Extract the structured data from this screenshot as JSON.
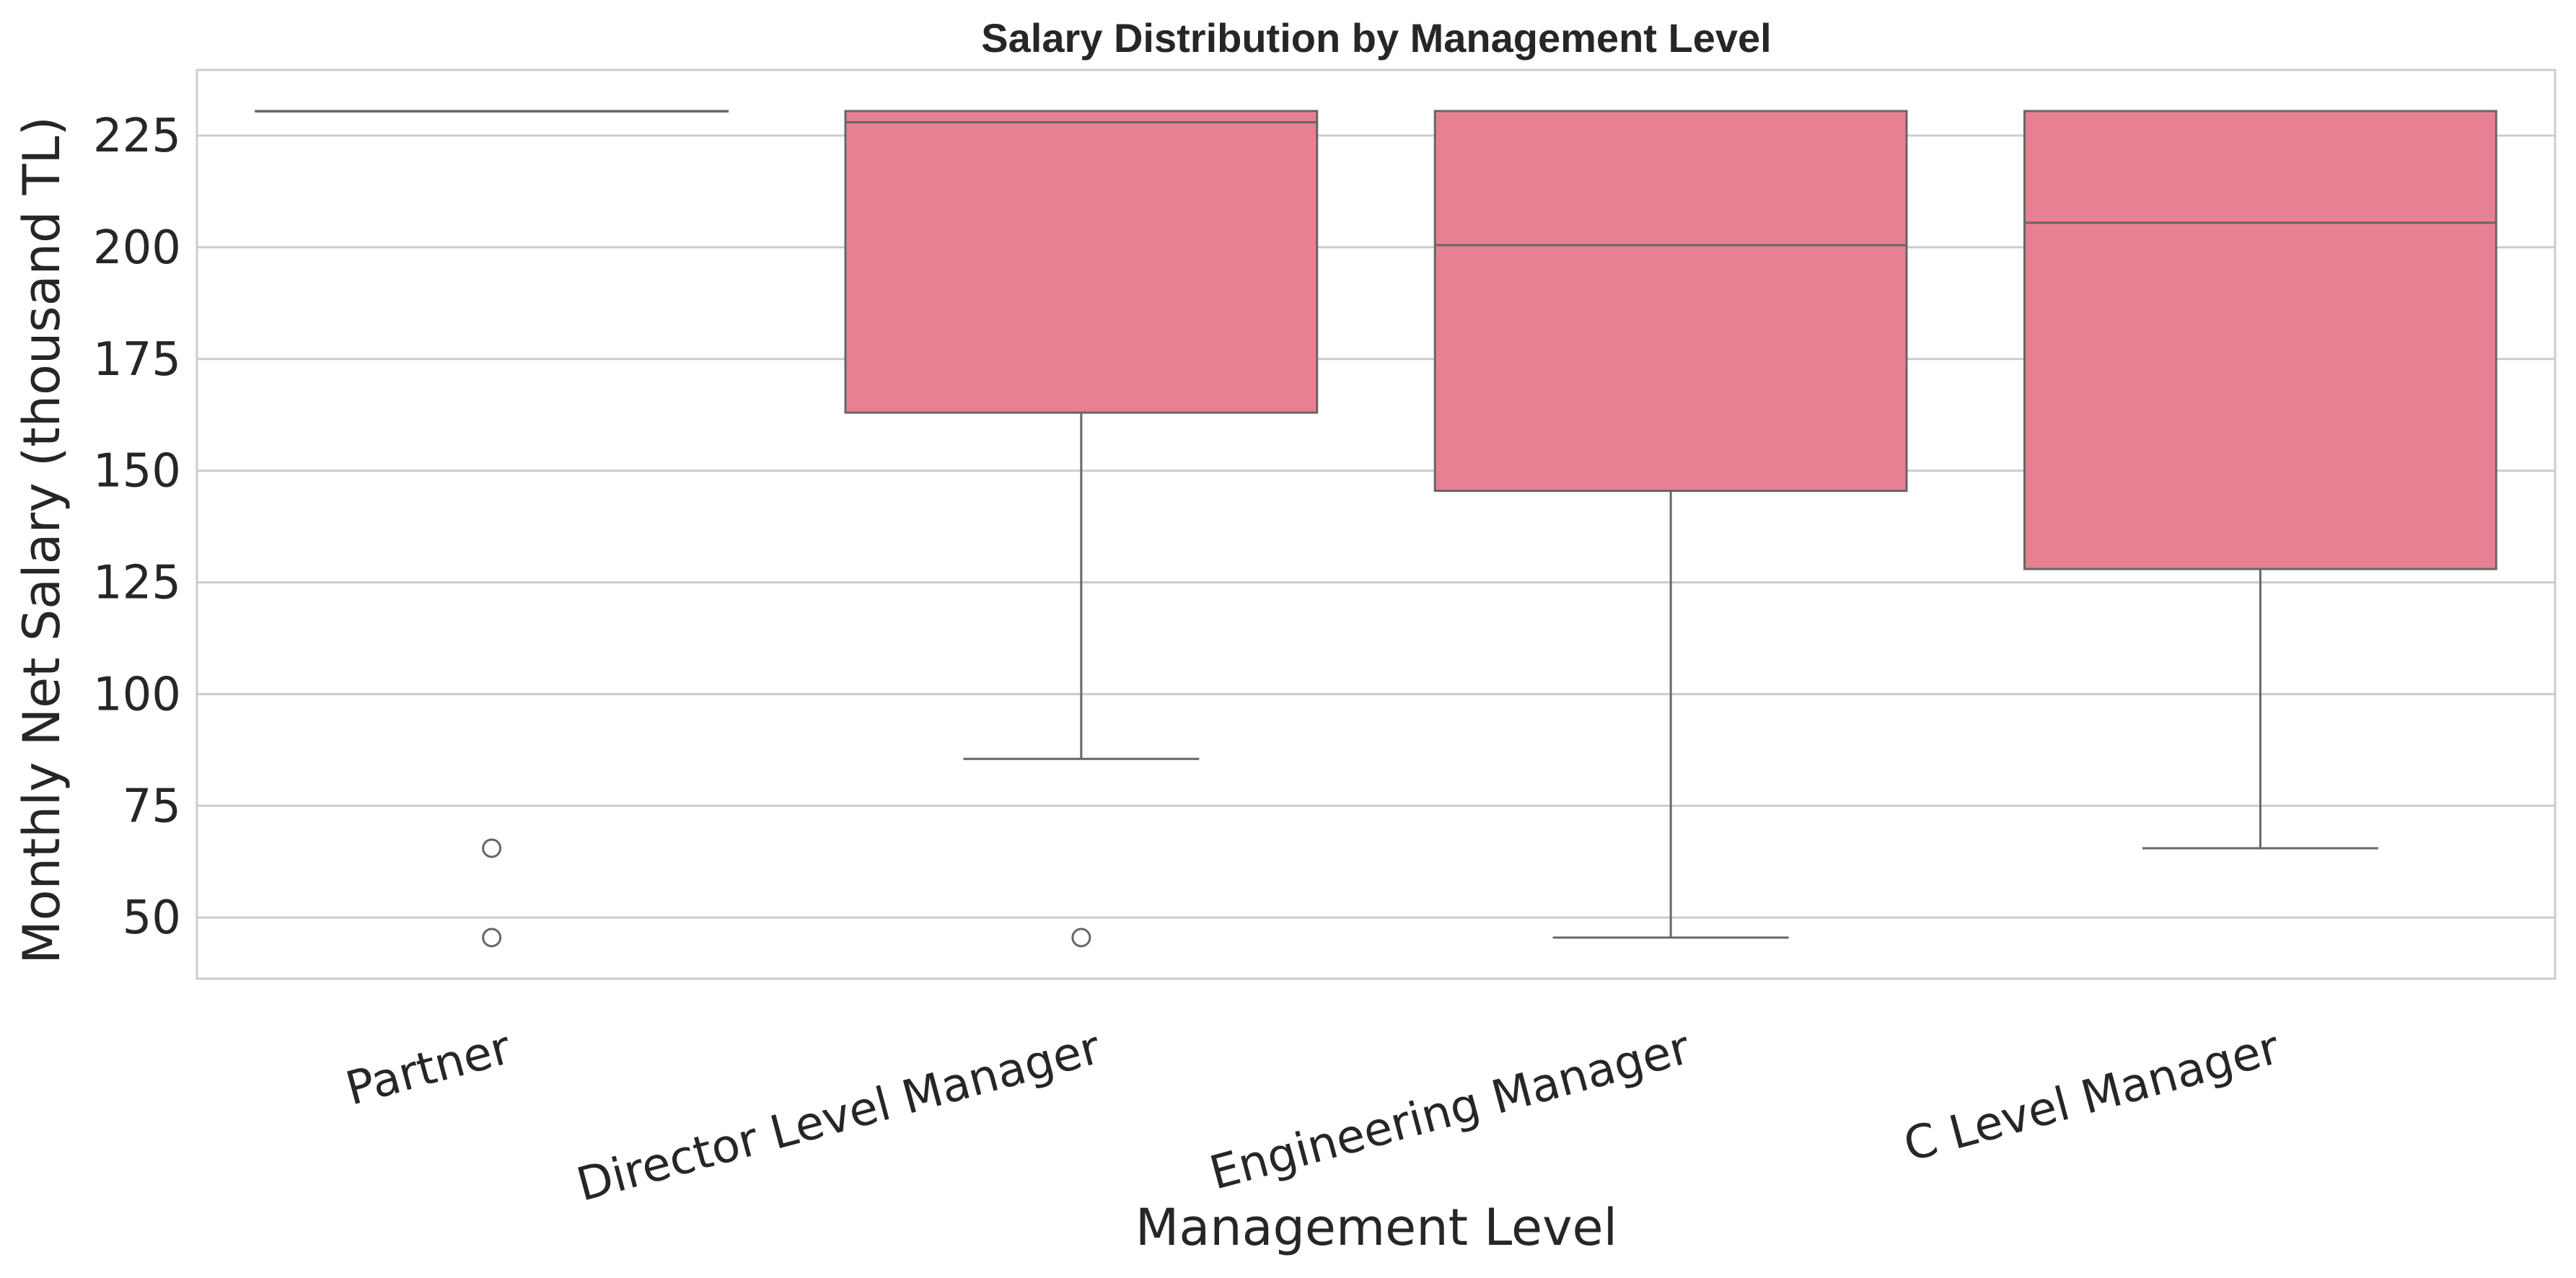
{
  "chart_data": {
    "type": "box",
    "title": "Salary Distribution by Management Level",
    "xlabel": "Management Level",
    "ylabel": "Monthly Net Salary (thousand TL)",
    "ylim": [
      36.3,
      239.7
    ],
    "yticks": [
      50,
      75,
      100,
      125,
      150,
      175,
      200,
      225
    ],
    "grid": true,
    "box_color": "#e88093",
    "edge_color": "#666666",
    "categories": [
      "Partner",
      "Director Level Manager",
      "Engineering Manager",
      "C Level Manager"
    ],
    "boxes": [
      {
        "category": "Partner",
        "whisker_low": 230.5,
        "q1": 230.5,
        "median": 230.5,
        "q3": 230.5,
        "whisker_high": 230.5,
        "outliers": [
          65.5,
          45.5
        ]
      },
      {
        "category": "Director Level Manager",
        "whisker_low": 85.5,
        "q1": 163.0,
        "median": 228.0,
        "q3": 230.5,
        "whisker_high": 230.5,
        "outliers": [
          45.5
        ]
      },
      {
        "category": "Engineering Manager",
        "whisker_low": 45.5,
        "q1": 145.5,
        "median": 200.5,
        "q3": 230.5,
        "whisker_high": 230.5,
        "outliers": []
      },
      {
        "category": "C Level Manager",
        "whisker_low": 65.5,
        "q1": 128.0,
        "median": 205.5,
        "q3": 230.5,
        "whisker_high": 230.5,
        "outliers": []
      }
    ]
  }
}
